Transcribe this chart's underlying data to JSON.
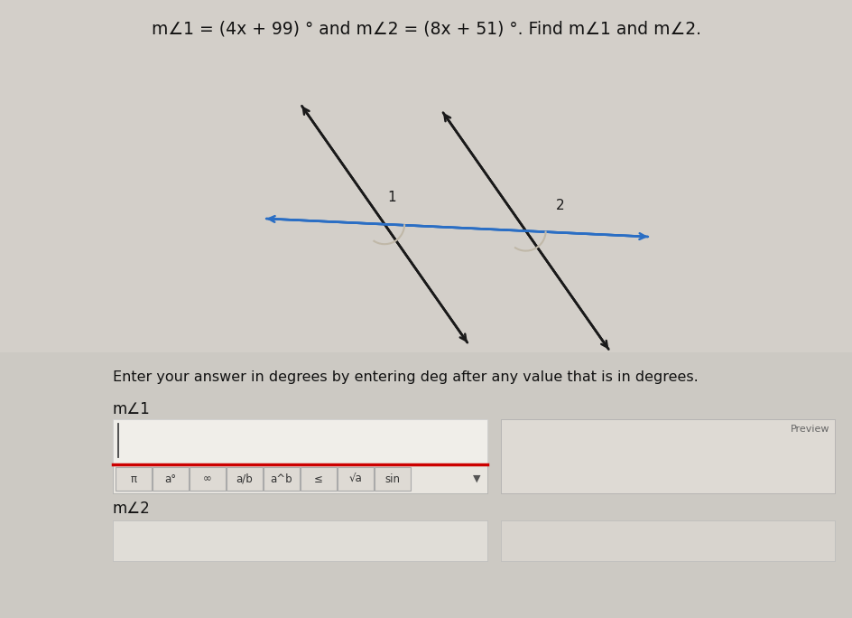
{
  "bg_color": "#d3cfc9",
  "title_text": "m∠1 = (4x + 99) ° and m∠2 = (8x + 51) °. Find m∠1 and m∠2.",
  "title_fontsize": 13.5,
  "title_color": "#111111",
  "instruction_text": "Enter your answer in degrees by entering deg after any value that is in degrees.",
  "instruction_fontsize": 11.5,
  "label1": "m∠1",
  "label2": "m∠2",
  "angle_label1": "1",
  "angle_label2": "2",
  "line_color": "#1a1a1a",
  "transversal_color": "#2a6ec4",
  "arc_color": "#c0b8a8",
  "toolbar_border": "#cc0000",
  "preview_text": "Preview",
  "toolbar_items": [
    "π",
    "a°",
    "∞",
    "a/b",
    "a^b",
    "≤",
    "√a",
    "sin"
  ]
}
